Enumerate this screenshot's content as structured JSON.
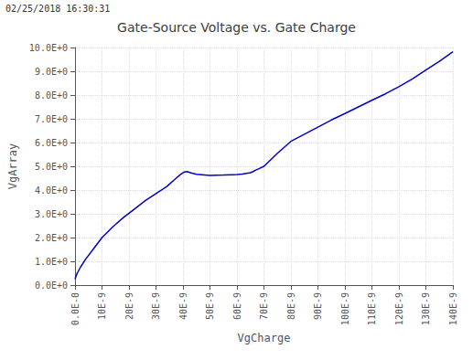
{
  "chart_data": {
    "type": "line",
    "title": "Gate-Source Voltage vs. Gate Charge",
    "xlabel": "VgCharge",
    "ylabel": "VgArray",
    "annotations": [
      "02/25/2018 16:30:31"
    ],
    "color": "#0000cc",
    "grid": true,
    "xlim": [
      0,
      1.4e-07
    ],
    "ylim": [
      0,
      10.0
    ],
    "xticks": [
      {
        "value": 0,
        "label": "0.0E-0"
      },
      {
        "value": 1e-08,
        "label": "10E-9"
      },
      {
        "value": 2e-08,
        "label": "20E-9"
      },
      {
        "value": 3e-08,
        "label": "30E-9"
      },
      {
        "value": 4e-08,
        "label": "40E-9"
      },
      {
        "value": 5e-08,
        "label": "50E-9"
      },
      {
        "value": 6e-08,
        "label": "60E-9"
      },
      {
        "value": 7e-08,
        "label": "70E-9"
      },
      {
        "value": 8e-08,
        "label": "80E-9"
      },
      {
        "value": 9e-08,
        "label": "90E-9"
      },
      {
        "value": 1e-07,
        "label": "100E-9"
      },
      {
        "value": 1.1e-07,
        "label": "110E-9"
      },
      {
        "value": 1.2e-07,
        "label": "120E-9"
      },
      {
        "value": 1.3e-07,
        "label": "130E-9"
      },
      {
        "value": 1.4e-07,
        "label": "140E-9"
      }
    ],
    "yticks": [
      {
        "value": 0,
        "label": "0.0E+0"
      },
      {
        "value": 1,
        "label": "1.0E+0"
      },
      {
        "value": 2,
        "label": "2.0E+0"
      },
      {
        "value": 3,
        "label": "3.0E+0"
      },
      {
        "value": 4,
        "label": "4.0E+0"
      },
      {
        "value": 5,
        "label": "5.0E+0"
      },
      {
        "value": 6,
        "label": "6.0E+0"
      },
      {
        "value": 7,
        "label": "7.0E+0"
      },
      {
        "value": 8,
        "label": "8.0E+0"
      },
      {
        "value": 9,
        "label": "9.0E+0"
      },
      {
        "value": 10,
        "label": "10.0E+0"
      }
    ],
    "x": [
      0,
      3e-10,
      8e-10,
      2e-09,
      4e-09,
      7e-09,
      1e-08,
      1.4e-08,
      1.8e-08,
      2.2e-08,
      2.6e-08,
      3e-08,
      3.4e-08,
      3.7e-08,
      3.9e-08,
      4.05e-08,
      4.15e-08,
      4.3e-08,
      4.5e-08,
      5e-08,
      5.5e-08,
      6e-08,
      6.2e-08,
      6.35e-08,
      6.5e-08,
      6.6e-08,
      6.7e-08,
      6.85e-08,
      7e-08,
      7.5e-08,
      8e-08,
      8.5e-08,
      9e-08,
      9.5e-08,
      1e-07,
      1.05e-07,
      1.1e-07,
      1.15e-07,
      1.2e-07,
      1.25e-07,
      1.3e-07,
      1.35e-07,
      1.4e-07
    ],
    "values": [
      0.25,
      0.35,
      0.5,
      0.75,
      1.1,
      1.55,
      2.0,
      2.45,
      2.85,
      3.2,
      3.55,
      3.85,
      4.15,
      4.45,
      4.65,
      4.76,
      4.78,
      4.72,
      4.66,
      4.62,
      4.63,
      4.65,
      4.67,
      4.7,
      4.73,
      4.78,
      4.84,
      4.92,
      5.0,
      5.55,
      6.05,
      6.35,
      6.65,
      6.95,
      7.22,
      7.5,
      7.78,
      8.05,
      8.35,
      8.68,
      9.05,
      9.42,
      9.82
    ]
  }
}
